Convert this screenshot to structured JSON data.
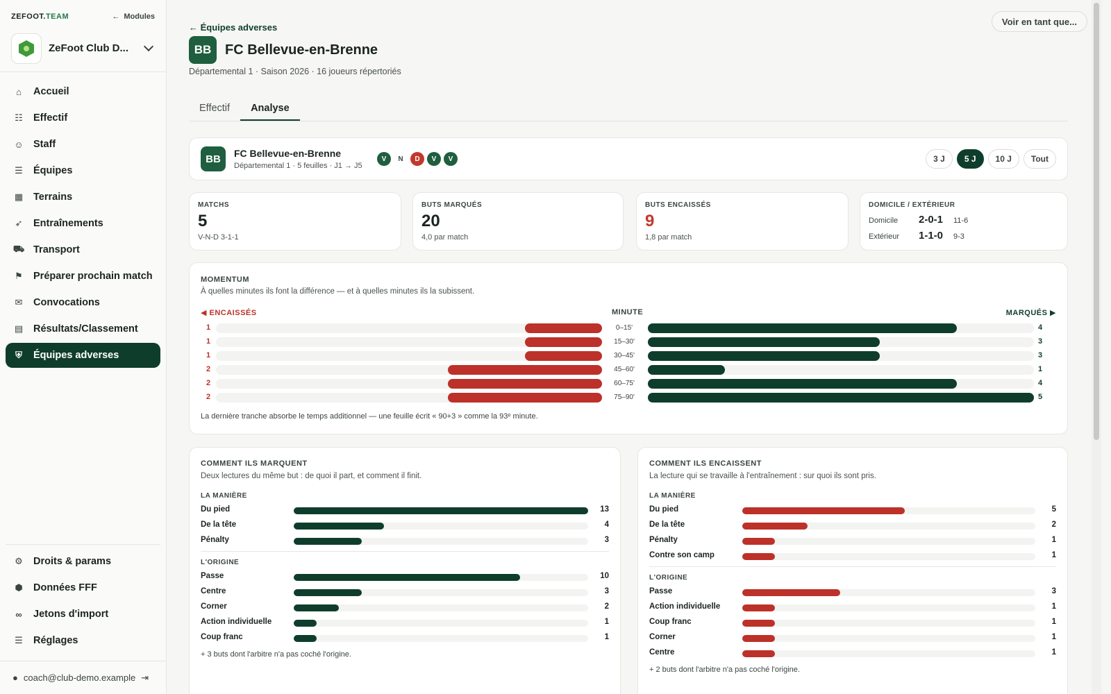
{
  "sidebar": {
    "brand_prefix": "ZEFOOT.",
    "brand_accent": "TEAM",
    "modules_label": "Modules",
    "club_name": "ZeFoot Club D...",
    "items": [
      {
        "label": "Accueil",
        "icon": "home-icon",
        "glyph": "⌂"
      },
      {
        "label": "Effectif",
        "icon": "users-icon",
        "glyph": "☷"
      },
      {
        "label": "Staff",
        "icon": "person-icon",
        "glyph": "☺"
      },
      {
        "label": "Équipes",
        "icon": "teams-icon",
        "glyph": "☰"
      },
      {
        "label": "Terrains",
        "icon": "map-icon",
        "glyph": "▦"
      },
      {
        "label": "Entraînements",
        "icon": "running-icon",
        "glyph": "➶"
      },
      {
        "label": "Transport",
        "icon": "bus-icon",
        "glyph": "⛟"
      },
      {
        "label": "Préparer prochain match",
        "icon": "flag-icon",
        "glyph": "⚑"
      },
      {
        "label": "Convocations",
        "icon": "clipboard-icon",
        "glyph": "✉"
      },
      {
        "label": "Résultats/Classement",
        "icon": "ranking-icon",
        "glyph": "▤"
      },
      {
        "label": "Équipes adverses",
        "icon": "shield-icon",
        "glyph": "⛨",
        "active": true
      }
    ],
    "bottom_items": [
      {
        "label": "Droits & params",
        "icon": "user-settings-icon",
        "glyph": "⚙"
      },
      {
        "label": "Données FFF",
        "icon": "fff-icon",
        "glyph": "⬢"
      },
      {
        "label": "Jetons d'import",
        "icon": "link-icon",
        "glyph": "∞"
      },
      {
        "label": "Réglages",
        "icon": "sliders-icon",
        "glyph": "☰"
      }
    ],
    "user_email": "coach@club-demo.example"
  },
  "header": {
    "view_as": "Voir en tant que...",
    "back": "← Équipes adverses",
    "badge": "BB",
    "team_name": "FC Bellevue-en-Brenne",
    "subtitle": "Départemental 1 · Saison 2026 · 16 joueurs répertoriés",
    "tabs": [
      "Effectif",
      "Analyse"
    ]
  },
  "summary": {
    "badge": "BB",
    "name": "FC Bellevue-en-Brenne",
    "sub": "Départemental 1 · 5 feuilles · J1 → J5",
    "form": [
      "V",
      "N",
      "D",
      "V",
      "V"
    ],
    "ranges": [
      "3 J",
      "5 J",
      "10 J",
      "Tout"
    ],
    "active_range": "5 J"
  },
  "stats": {
    "matches": {
      "label": "MATCHS",
      "value": "5",
      "sub": "V-N-D 3-1-1"
    },
    "scored": {
      "label": "BUTS MARQUÉS",
      "value": "20",
      "sub": "4,0 par match"
    },
    "conceded": {
      "label": "BUTS ENCAISSÉS",
      "value": "9",
      "sub": "1,8 par match"
    },
    "home_away": {
      "label": "DOMICILE / EXTÉRIEUR",
      "home_label": "Domicile",
      "home_record": "2-0-1",
      "home_goals": "11-6",
      "away_label": "Extérieur",
      "away_record": "1-1-0",
      "away_goals": "9-3"
    }
  },
  "momentum": {
    "title": "MOMENTUM",
    "subtitle": "À quelles minutes ils font la différence — et à quelles minutes ils la subissent.",
    "left_head": "◀ ENCAISSÉS",
    "mid_head": "MINUTE",
    "right_head": "MARQUÉS ▶",
    "footnote": "La dernière tranche absorbe le temps additionnel — une feuille écrit « 90+3 » comme la 93ᵉ minute.",
    "max": 5,
    "rows": [
      {
        "minute": "0–15'",
        "conceded": 1,
        "scored": 4
      },
      {
        "minute": "15–30'",
        "conceded": 1,
        "scored": 3
      },
      {
        "minute": "30–45'",
        "conceded": 1,
        "scored": 3
      },
      {
        "minute": "45–60'",
        "conceded": 2,
        "scored": 1
      },
      {
        "minute": "60–75'",
        "conceded": 2,
        "scored": 4
      },
      {
        "minute": "75–90'",
        "conceded": 2,
        "scored": 5
      }
    ]
  },
  "how_scored": {
    "title": "COMMENT ILS MARQUENT",
    "subtitle": "Deux lectures du même but : de quoi il part, et comment il finit.",
    "manner_title": "LA MANIÈRE",
    "origin_title": "L'ORIGINE",
    "max": 13,
    "manner": [
      {
        "label": "Du pied",
        "value": 13
      },
      {
        "label": "De la tête",
        "value": 4
      },
      {
        "label": "Pénalty",
        "value": 3
      }
    ],
    "origin": [
      {
        "label": "Passe",
        "value": 10
      },
      {
        "label": "Centre",
        "value": 3
      },
      {
        "label": "Corner",
        "value": 2
      },
      {
        "label": "Action individuelle",
        "value": 1
      },
      {
        "label": "Coup franc",
        "value": 1
      }
    ],
    "footnote": "+ 3 buts dont l'arbitre n'a pas coché l'origine."
  },
  "how_conceded": {
    "title": "COMMENT ILS ENCAISSENT",
    "subtitle": "La lecture qui se travaille à l'entraînement : sur quoi ils sont pris.",
    "manner_title": "LA MANIÈRE",
    "origin_title": "L'ORIGINE",
    "max": 9,
    "manner": [
      {
        "label": "Du pied",
        "value": 5
      },
      {
        "label": "De la tête",
        "value": 2
      },
      {
        "label": "Pénalty",
        "value": 1
      },
      {
        "label": "Contre son camp",
        "value": 1
      }
    ],
    "origin": [
      {
        "label": "Passe",
        "value": 3
      },
      {
        "label": "Action individuelle",
        "value": 1
      },
      {
        "label": "Coup franc",
        "value": 1
      },
      {
        "label": "Corner",
        "value": 1
      },
      {
        "label": "Centre",
        "value": 1
      }
    ],
    "footnote": "+ 2 buts dont l'arbitre n'a pas coché l'origine."
  },
  "colors": {
    "primary": "#0f3d2c",
    "loss": "#bc3129",
    "win": "#1f5e3e"
  }
}
